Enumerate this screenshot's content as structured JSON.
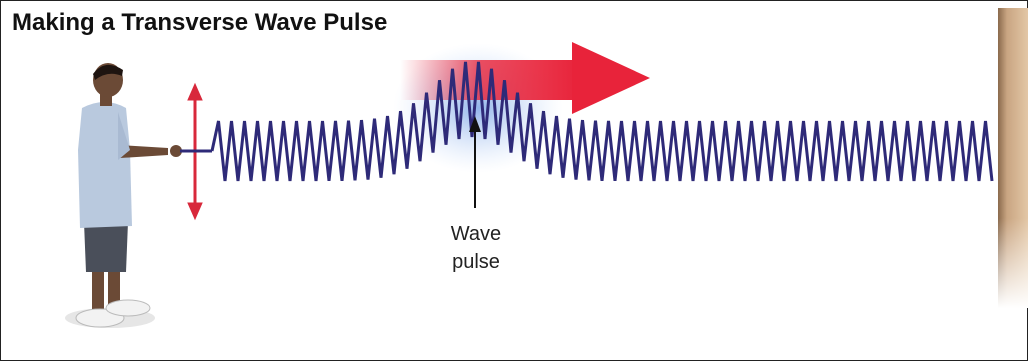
{
  "title": "Making a Transverse Wave Pulse",
  "label": {
    "lines": [
      "Wave",
      "pulse"
    ]
  }
}
